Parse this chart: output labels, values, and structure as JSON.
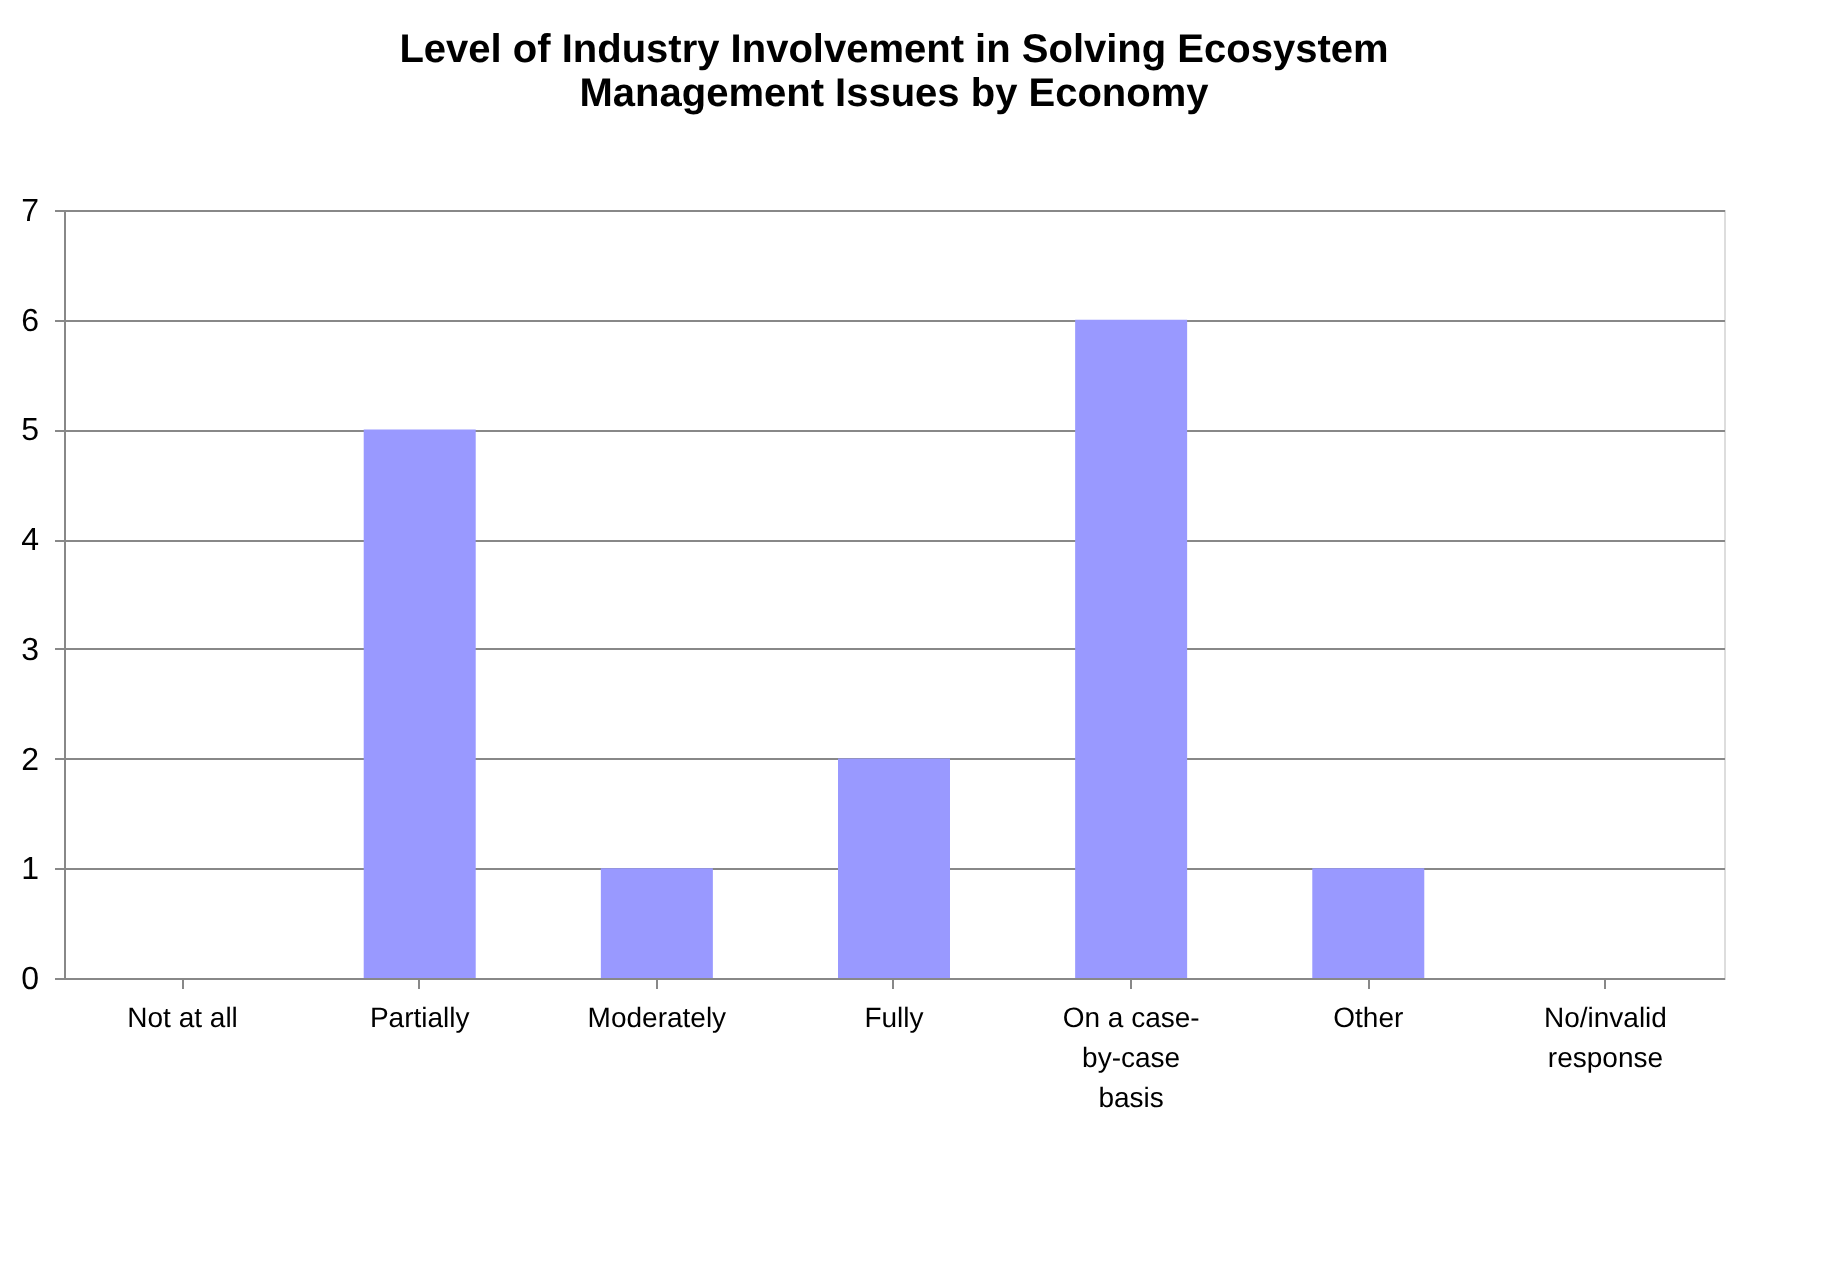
{
  "chart_data": {
    "type": "bar",
    "title": "Level of Industry Involvement in Solving Ecosystem Management Issues by Economy",
    "categories": [
      "Not at all",
      "Partially",
      "Moderately",
      "Fully",
      "On a case-by-case basis",
      "Other",
      "No/invalid response"
    ],
    "values": [
      0,
      5,
      1,
      2,
      6,
      1,
      0
    ],
    "color": "#9999ff",
    "ylim": [
      0,
      7
    ],
    "yticks": [
      0,
      1,
      2,
      3,
      4,
      5,
      6,
      7
    ],
    "grid": "y"
  }
}
